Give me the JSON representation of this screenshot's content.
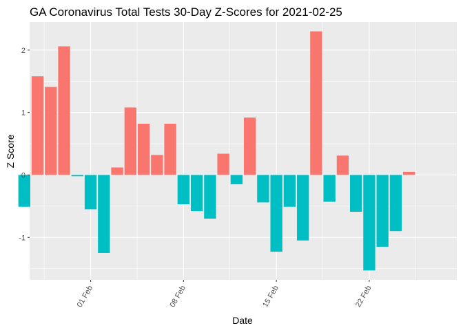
{
  "chart_data": {
    "type": "bar",
    "title": "GA Coronavirus Total Tests 30-Day Z-Scores for 2021-02-25",
    "xlabel": "Date",
    "ylabel": "Z Score",
    "ylim": [
      -1.68,
      2.45
    ],
    "y_ticks": [
      -1,
      0,
      1,
      2
    ],
    "x_ticks": [
      {
        "label": "01 Feb",
        "day": 32
      },
      {
        "label": "08 Feb",
        "day": 39
      },
      {
        "label": "15 Feb",
        "day": 46
      },
      {
        "label": "22 Feb",
        "day": 53
      }
    ],
    "xlim": [
      27.4,
      59.6
    ],
    "colors": {
      "positive": "#F8766D",
      "negative": "#00BFC4",
      "panel": "#EBEBEB",
      "grid": "#FFFFFF"
    },
    "bars": [
      {
        "date": "2021-01-27",
        "day": 27,
        "value": -0.51
      },
      {
        "date": "2021-01-28",
        "day": 28,
        "value": 1.58
      },
      {
        "date": "2021-01-29",
        "day": 29,
        "value": 1.41
      },
      {
        "date": "2021-01-30",
        "day": 30,
        "value": 2.06
      },
      {
        "date": "2021-01-31",
        "day": 31,
        "value": -0.02
      },
      {
        "date": "2021-02-01",
        "day": 32,
        "value": -0.55
      },
      {
        "date": "2021-02-02",
        "day": 33,
        "value": -1.25
      },
      {
        "date": "2021-02-03",
        "day": 34,
        "value": 0.12
      },
      {
        "date": "2021-02-04",
        "day": 35,
        "value": 1.08
      },
      {
        "date": "2021-02-05",
        "day": 36,
        "value": 0.82
      },
      {
        "date": "2021-02-06",
        "day": 37,
        "value": 0.32
      },
      {
        "date": "2021-02-07",
        "day": 38,
        "value": 0.82
      },
      {
        "date": "2021-02-08",
        "day": 39,
        "value": -0.47
      },
      {
        "date": "2021-02-09",
        "day": 40,
        "value": -0.58
      },
      {
        "date": "2021-02-10",
        "day": 41,
        "value": -0.7
      },
      {
        "date": "2021-02-11",
        "day": 42,
        "value": 0.34
      },
      {
        "date": "2021-02-12",
        "day": 43,
        "value": -0.15
      },
      {
        "date": "2021-02-13",
        "day": 44,
        "value": 0.92
      },
      {
        "date": "2021-02-14",
        "day": 45,
        "value": -0.44
      },
      {
        "date": "2021-02-15",
        "day": 46,
        "value": -1.23
      },
      {
        "date": "2021-02-16",
        "day": 47,
        "value": -0.51
      },
      {
        "date": "2021-02-17",
        "day": 48,
        "value": -1.05
      },
      {
        "date": "2021-02-18",
        "day": 49,
        "value": 2.3
      },
      {
        "date": "2021-02-19",
        "day": 50,
        "value": -0.43
      },
      {
        "date": "2021-02-20",
        "day": 51,
        "value": 0.31
      },
      {
        "date": "2021-02-21",
        "day": 52,
        "value": -0.59
      },
      {
        "date": "2021-02-22",
        "day": 53,
        "value": -1.53
      },
      {
        "date": "2021-02-23",
        "day": 54,
        "value": -1.15
      },
      {
        "date": "2021-02-24",
        "day": 55,
        "value": -0.9
      },
      {
        "date": "2021-02-25",
        "day": 56,
        "value": 0.05
      }
    ]
  }
}
